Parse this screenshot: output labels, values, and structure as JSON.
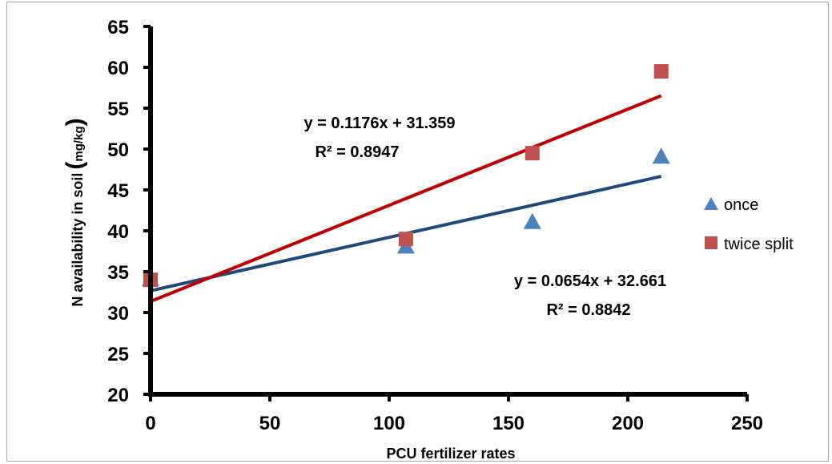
{
  "chart_data": {
    "type": "scatter",
    "title": "",
    "xlabel": "PCU  fertilizer rates",
    "ylabel_main": "N  availability in soil",
    "ylabel_paren_open": "(",
    "ylabel_unit": "mg/kg",
    "ylabel_paren_close": ")",
    "xlim": [
      0,
      250
    ],
    "ylim": [
      20,
      65
    ],
    "x_ticks": [
      0,
      50,
      100,
      150,
      200,
      250
    ],
    "y_ticks": [
      20,
      25,
      30,
      35,
      40,
      45,
      50,
      55,
      60,
      65
    ],
    "grid": false,
    "legend_position": "right",
    "series": [
      {
        "name": "once",
        "marker": "triangle",
        "color": "#4f81bd",
        "x": [
          0,
          107,
          160,
          214
        ],
        "y": [
          34,
          38,
          41,
          49
        ],
        "trendline": {
          "slope": 0.0654,
          "intercept": 32.661,
          "x_range": [
            0,
            214
          ],
          "color": "#1f497d",
          "equation": "y = 0.0654x + 32.661",
          "r2": "R² = 0.8842"
        }
      },
      {
        "name": "twice split",
        "marker": "square",
        "color": "#c0504d",
        "x": [
          0,
          107,
          160,
          214
        ],
        "y": [
          34,
          39,
          49.5,
          59.5
        ],
        "trendline": {
          "slope": 0.1176,
          "intercept": 31.359,
          "x_range": [
            0,
            214
          ],
          "color": "#c00000",
          "equation": "y = 0.1176x + 31.359",
          "r2": "R² = 0.8947"
        }
      }
    ]
  }
}
